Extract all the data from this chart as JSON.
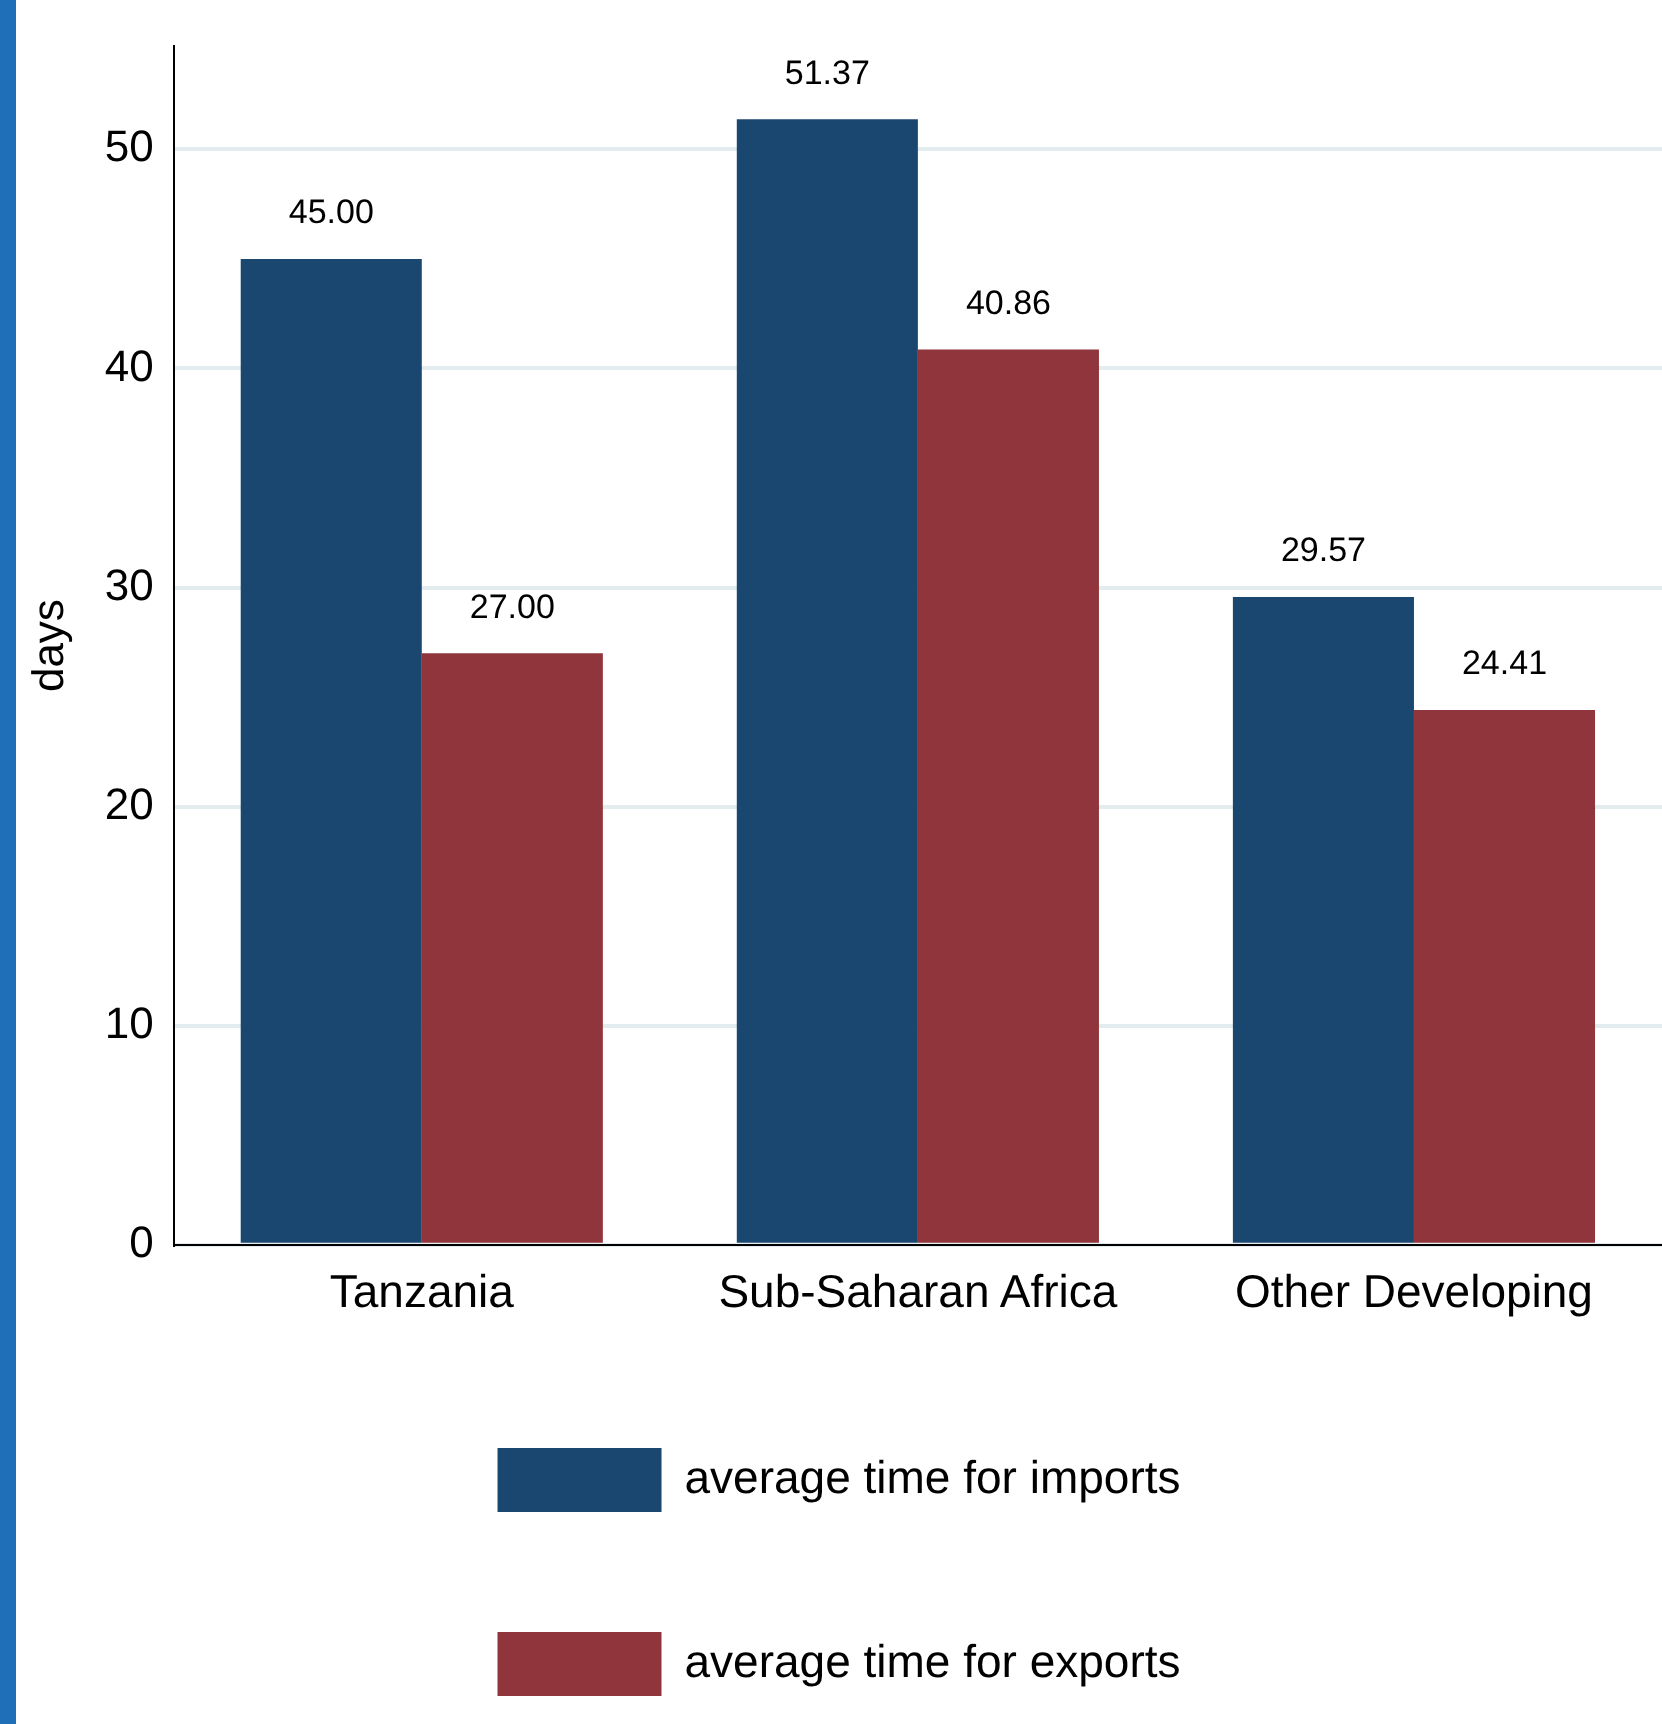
{
  "chart_data": {
    "type": "bar",
    "ylabel": "days",
    "categories": [
      "Tanzania",
      "Sub-Saharan Africa",
      "Other Developing"
    ],
    "series": [
      {
        "name": "average time for imports",
        "color": "#1a476f",
        "values": [
          45.0,
          51.37,
          29.57
        ],
        "value_labels": [
          "45.00",
          "51.37",
          "29.57"
        ]
      },
      {
        "name": "average time for exports",
        "color": "#90353b",
        "values": [
          27.0,
          40.86,
          24.41
        ],
        "value_labels": [
          "27.00",
          "40.86",
          "24.41"
        ]
      }
    ],
    "ylim": [
      0,
      54.7
    ],
    "yticks": [
      0,
      10,
      20,
      30,
      40,
      50
    ],
    "grid": "y",
    "legend": "bottom"
  }
}
